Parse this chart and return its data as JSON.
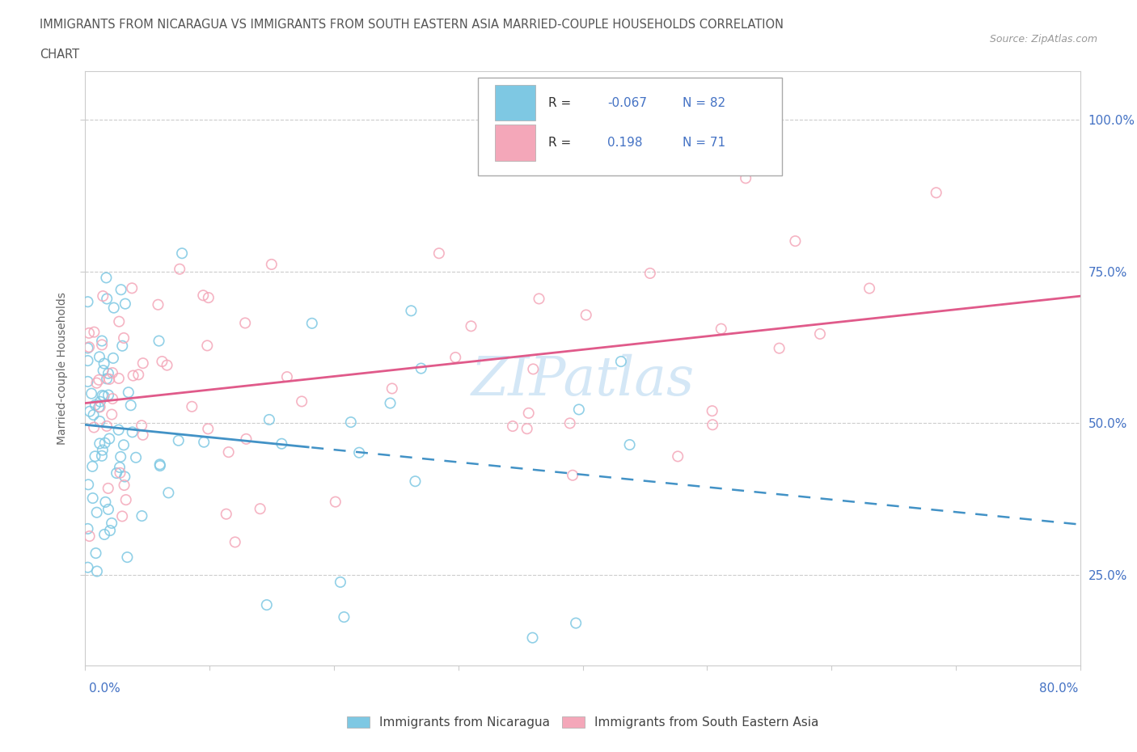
{
  "title_line1": "IMMIGRANTS FROM NICARAGUA VS IMMIGRANTS FROM SOUTH EASTERN ASIA MARRIED-COUPLE HOUSEHOLDS CORRELATION",
  "title_line2": "CHART",
  "source": "Source: ZipAtlas.com",
  "ylabel": "Married-couple Households",
  "xmin": 0.0,
  "xmax": 0.8,
  "ymin": 0.1,
  "ymax": 1.08,
  "yticks": [
    0.25,
    0.5,
    0.75,
    1.0
  ],
  "ytick_labels": [
    "25.0%",
    "50.0%",
    "75.0%",
    "100.0%"
  ],
  "color_nicaragua": "#7ec8e3",
  "color_sea": "#f4a7b9",
  "color_trendline_nicaragua": "#4292c6",
  "color_trendline_sea": "#e05a8a",
  "R_nicaragua": -0.067,
  "N_nicaragua": 82,
  "R_sea": 0.198,
  "N_sea": 71,
  "watermark_text": "ZIPatlas",
  "watermark_color": "#b8d8f0",
  "background_color": "#ffffff",
  "grid_color": "#cccccc",
  "legend_text_color": "#333333",
  "legend_value_color": "#4472c4",
  "axis_label_color": "#4472c4",
  "title_color": "#555555"
}
